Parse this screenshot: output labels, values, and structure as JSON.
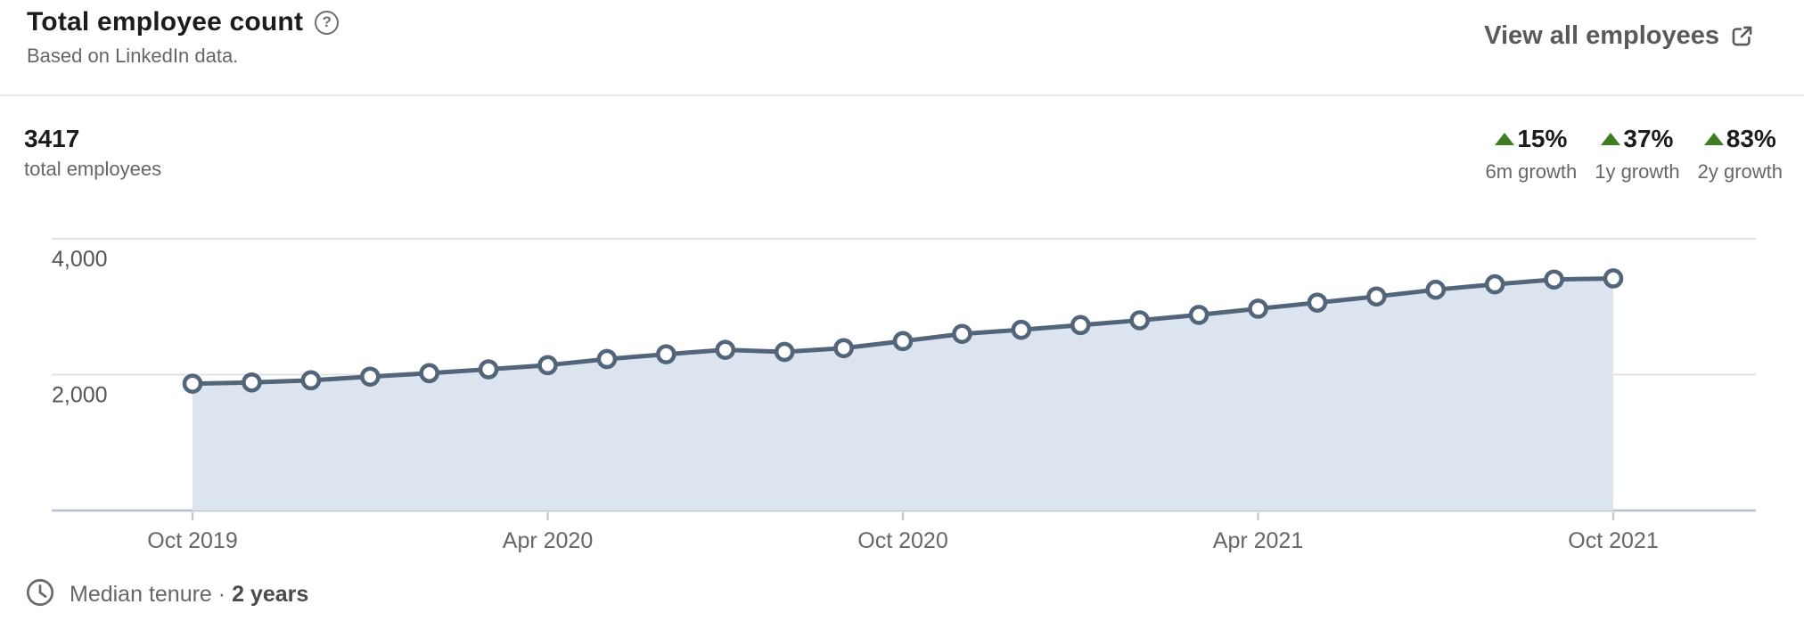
{
  "header": {
    "title": "Total employee count",
    "help_icon": "?",
    "subtitle": "Based on LinkedIn data.",
    "view_all_label": "View all employees"
  },
  "stats": {
    "total_value": "3417",
    "total_label": "total employees",
    "growth": [
      {
        "value": "15%",
        "label": "6m growth"
      },
      {
        "value": "37%",
        "label": "1y growth"
      },
      {
        "value": "83%",
        "label": "2y growth"
      }
    ]
  },
  "chart_data": {
    "type": "area",
    "title": "Total employee count",
    "x": [
      "Oct 2019",
      "Nov 2019",
      "Dec 2019",
      "Jan 2020",
      "Feb 2020",
      "Mar 2020",
      "Apr 2020",
      "May 2020",
      "Jun 2020",
      "Jul 2020",
      "Aug 2020",
      "Sep 2020",
      "Oct 2020",
      "Nov 2020",
      "Dec 2020",
      "Jan 2021",
      "Feb 2021",
      "Mar 2021",
      "Apr 2021",
      "May 2021",
      "Jun 2021",
      "Jul 2021",
      "Aug 2021",
      "Sep 2021",
      "Oct 2021"
    ],
    "values": [
      1867,
      1885,
      1917,
      1970,
      2022,
      2078,
      2140,
      2230,
      2300,
      2365,
      2335,
      2390,
      2494,
      2600,
      2660,
      2730,
      2800,
      2880,
      2971,
      3060,
      3150,
      3250,
      3330,
      3400,
      3417
    ],
    "xlabel": "",
    "ylabel": "",
    "ylim": [
      0,
      4000
    ],
    "yticks": [
      2000,
      4000
    ],
    "ytick_labels": [
      "2,000",
      "4,000"
    ],
    "xtick_indices": [
      0,
      6,
      12,
      18,
      24
    ],
    "xtick_labels": [
      "Oct 2019",
      "Apr 2020",
      "Oct 2020",
      "Apr 2021",
      "Oct 2021"
    ],
    "grid": true,
    "legend": false,
    "marker": "circle",
    "colors": {
      "line": "#53657b",
      "fill": "#dce4ef",
      "marker_fill": "#ffffff",
      "baseline": "#b6c0ce",
      "gridline": "#e2e2e2",
      "tick_text": "#666666"
    }
  },
  "footer": {
    "median_tenure_label": "Median tenure",
    "separator": "·",
    "median_tenure_value": "2 years"
  }
}
